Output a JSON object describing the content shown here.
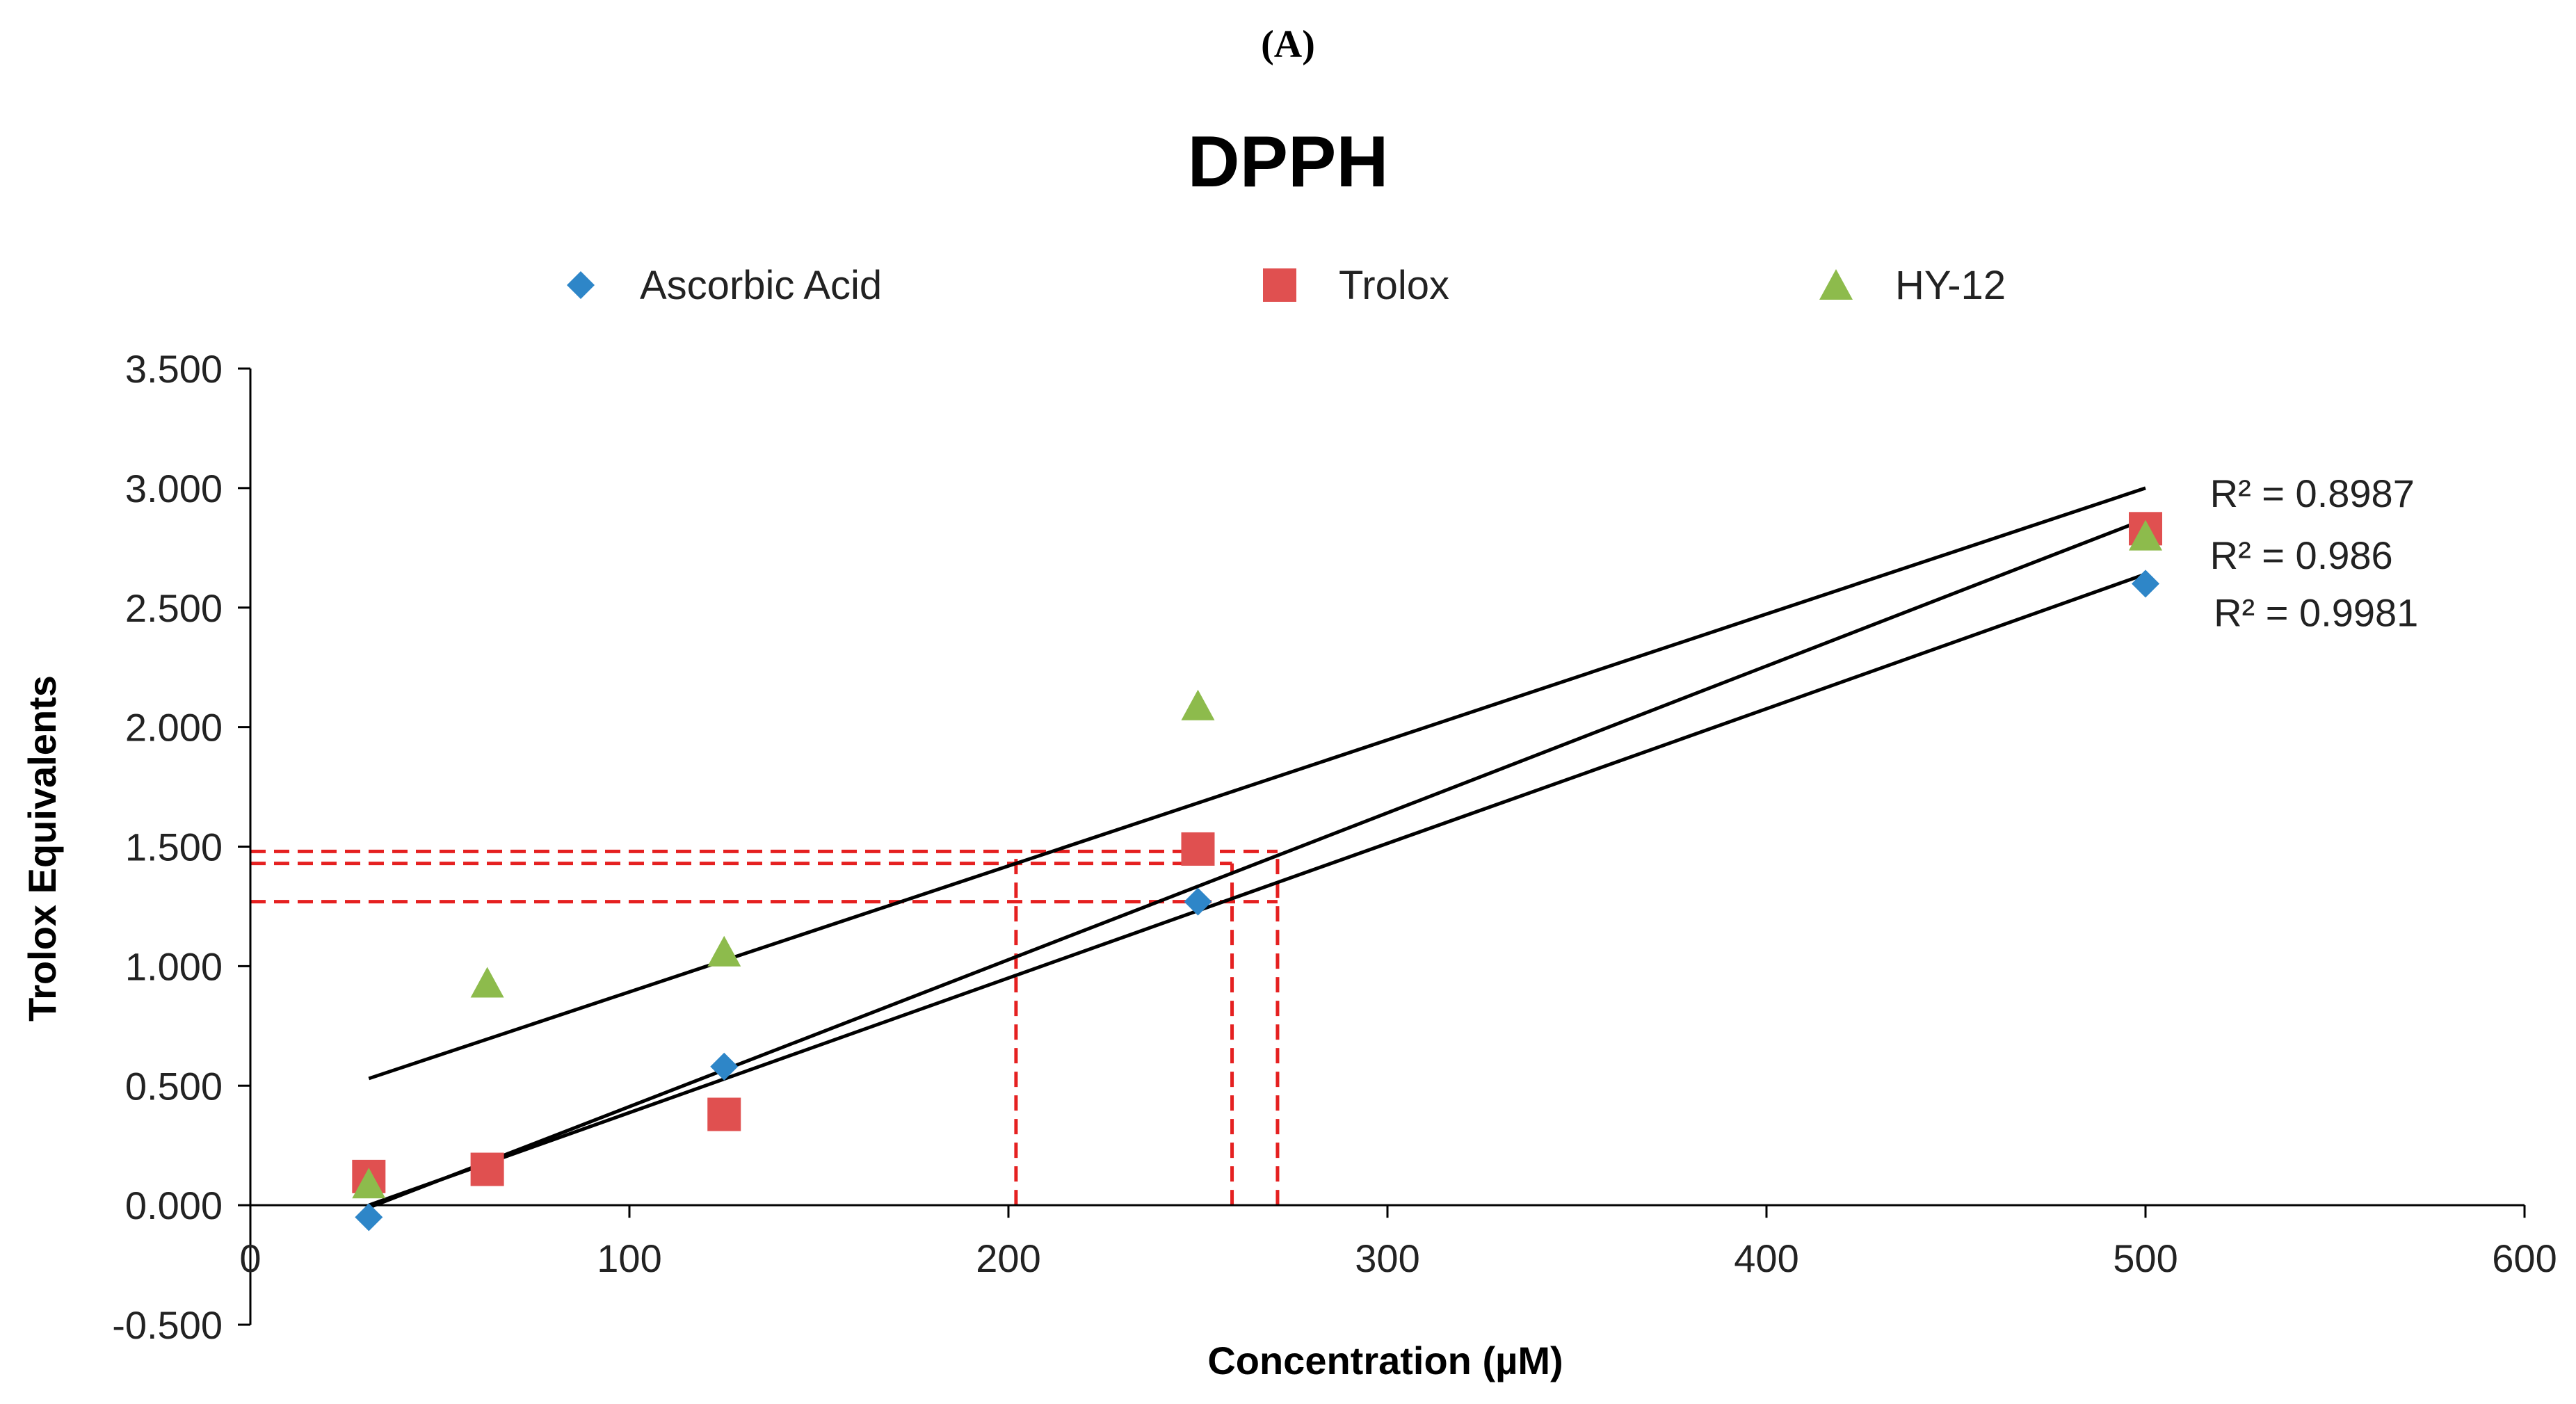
{
  "panel_label": "(A)",
  "chart_data": {
    "type": "scatter",
    "title": "DPPH",
    "xlabel": "Concentration (µM)",
    "ylabel": "Trolox Equivalents",
    "xlim": [
      0,
      600
    ],
    "ylim": [
      -0.5,
      3.5
    ],
    "x_ticks": [
      0,
      100,
      200,
      300,
      400,
      500,
      600
    ],
    "y_ticks": [
      -0.5,
      0.0,
      0.5,
      1.0,
      1.5,
      2.0,
      2.5,
      3.0,
      3.5
    ],
    "x_tick_labels": [
      "0",
      "100",
      "200",
      "300",
      "400",
      "500",
      "600"
    ],
    "y_tick_labels": [
      "-0.500",
      "0.000",
      "0.500",
      "1.000",
      "1.500",
      "2.000",
      "2.500",
      "3.000",
      "3.500"
    ],
    "grid": false,
    "legend_position": "top",
    "series": [
      {
        "name": "Ascorbic Acid",
        "marker": "diamond",
        "color": "#2E86C8",
        "x": [
          31.25,
          125,
          250,
          500
        ],
        "y": [
          -0.05,
          0.58,
          1.27,
          2.6
        ]
      },
      {
        "name": "Trolox",
        "marker": "square",
        "color": "#E05050",
        "x": [
          31.25,
          62.5,
          125,
          250,
          500
        ],
        "y": [
          0.12,
          0.15,
          0.38,
          1.49,
          2.83
        ]
      },
      {
        "name": "HY-12",
        "marker": "triangle",
        "color": "#8DBB4C",
        "x": [
          31.25,
          62.5,
          125,
          250,
          500
        ],
        "y": [
          0.09,
          0.93,
          1.06,
          2.09,
          2.8
        ]
      }
    ],
    "trendlines": [
      {
        "name": "trend-hy12",
        "x1": 31.25,
        "y1": 0.53,
        "x2": 500,
        "y2": 3.0,
        "color": "#000000"
      },
      {
        "name": "trend-trolox",
        "x1": 31.25,
        "y1": -0.01,
        "x2": 500,
        "y2": 2.87,
        "color": "#000000"
      },
      {
        "name": "trend-ascorbic",
        "x1": 31.25,
        "y1": 0.0,
        "x2": 500,
        "y2": 2.64,
        "color": "#000000"
      }
    ],
    "annotations": [
      {
        "name": "r2-hy12",
        "text": "R² = 0.8987",
        "x": 517,
        "y": 2.98
      },
      {
        "name": "r2-trolox",
        "text": "R² = 0.986",
        "x": 517,
        "y": 2.72
      },
      {
        "name": "r2-ascorbic",
        "text": "R² = 0.9981",
        "x": 518,
        "y": 2.48
      }
    ],
    "reference_lines": {
      "color": "#E52020",
      "horizontal": [
        {
          "name": "ref-h-1",
          "y": 1.48,
          "x_from": 0,
          "x_to": 271
        },
        {
          "name": "ref-h-2",
          "y": 1.43,
          "x_from": 0,
          "x_to": 259
        },
        {
          "name": "ref-h-3",
          "y": 1.27,
          "x_from": 0,
          "x_to": 271
        }
      ],
      "vertical": [
        {
          "name": "ref-v-1",
          "x": 202,
          "y_from": 0,
          "y_to": 1.48
        },
        {
          "name": "ref-v-2",
          "x": 259,
          "y_from": 0,
          "y_to": 1.43
        },
        {
          "name": "ref-v-3",
          "x": 271,
          "y_from": 0,
          "y_to": 1.48
        }
      ]
    }
  }
}
